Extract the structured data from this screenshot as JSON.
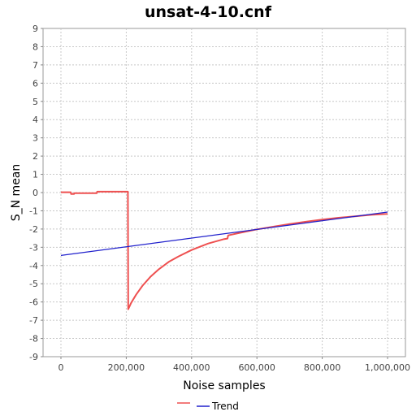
{
  "chart_data": {
    "type": "line",
    "title": "unsat-4-10.cnf",
    "xlabel": "Noise samples",
    "ylabel": "S_N mean",
    "xlim": [
      0,
      1000000
    ],
    "ylim": [
      -9,
      9
    ],
    "x_ticks": [
      0,
      200000,
      400000,
      600000,
      800000,
      1000000
    ],
    "x_tick_labels": [
      "0",
      "200,000",
      "400,000",
      "600,000",
      "800,000",
      "1,000,000"
    ],
    "y_ticks": [
      9,
      8,
      7,
      6,
      5,
      4,
      3,
      2,
      1,
      0,
      -1,
      -2,
      -3,
      -4,
      -5,
      -6,
      -7,
      -8,
      -9
    ],
    "y_tick_labels": [
      "9",
      "8",
      "7",
      "6",
      "5",
      "4",
      "3",
      "2",
      "1",
      "0",
      "-1",
      "-2",
      "-3",
      "-4",
      "-5",
      "-6",
      "-7",
      "-8",
      "-9"
    ],
    "grid": true,
    "legend_position": "bottom-center",
    "series": [
      {
        "name": "",
        "color": "#ee5050",
        "points": [
          [
            0,
            0.02
          ],
          [
            30000,
            0.02
          ],
          [
            31000,
            -0.08
          ],
          [
            40000,
            -0.08
          ],
          [
            41000,
            -0.03
          ],
          [
            110000,
            -0.03
          ],
          [
            111000,
            0.05
          ],
          [
            205000,
            0.05
          ],
          [
            206000,
            -6.4
          ],
          [
            215000,
            -6.05
          ],
          [
            230000,
            -5.6
          ],
          [
            250000,
            -5.1
          ],
          [
            275000,
            -4.6
          ],
          [
            300000,
            -4.2
          ],
          [
            330000,
            -3.8
          ],
          [
            360000,
            -3.5
          ],
          [
            400000,
            -3.15
          ],
          [
            450000,
            -2.8
          ],
          [
            500000,
            -2.55
          ],
          [
            510000,
            -2.52
          ],
          [
            512000,
            -2.35
          ],
          [
            550000,
            -2.2
          ],
          [
            600000,
            -2.02
          ],
          [
            650000,
            -1.87
          ],
          [
            700000,
            -1.73
          ],
          [
            750000,
            -1.6
          ],
          [
            800000,
            -1.48
          ],
          [
            850000,
            -1.38
          ],
          [
            900000,
            -1.3
          ],
          [
            950000,
            -1.22
          ],
          [
            1000000,
            -1.17
          ]
        ]
      },
      {
        "name": "Trend",
        "color": "#2020cc",
        "points": [
          [
            0,
            -3.45
          ],
          [
            1000000,
            -1.07
          ]
        ]
      }
    ]
  }
}
